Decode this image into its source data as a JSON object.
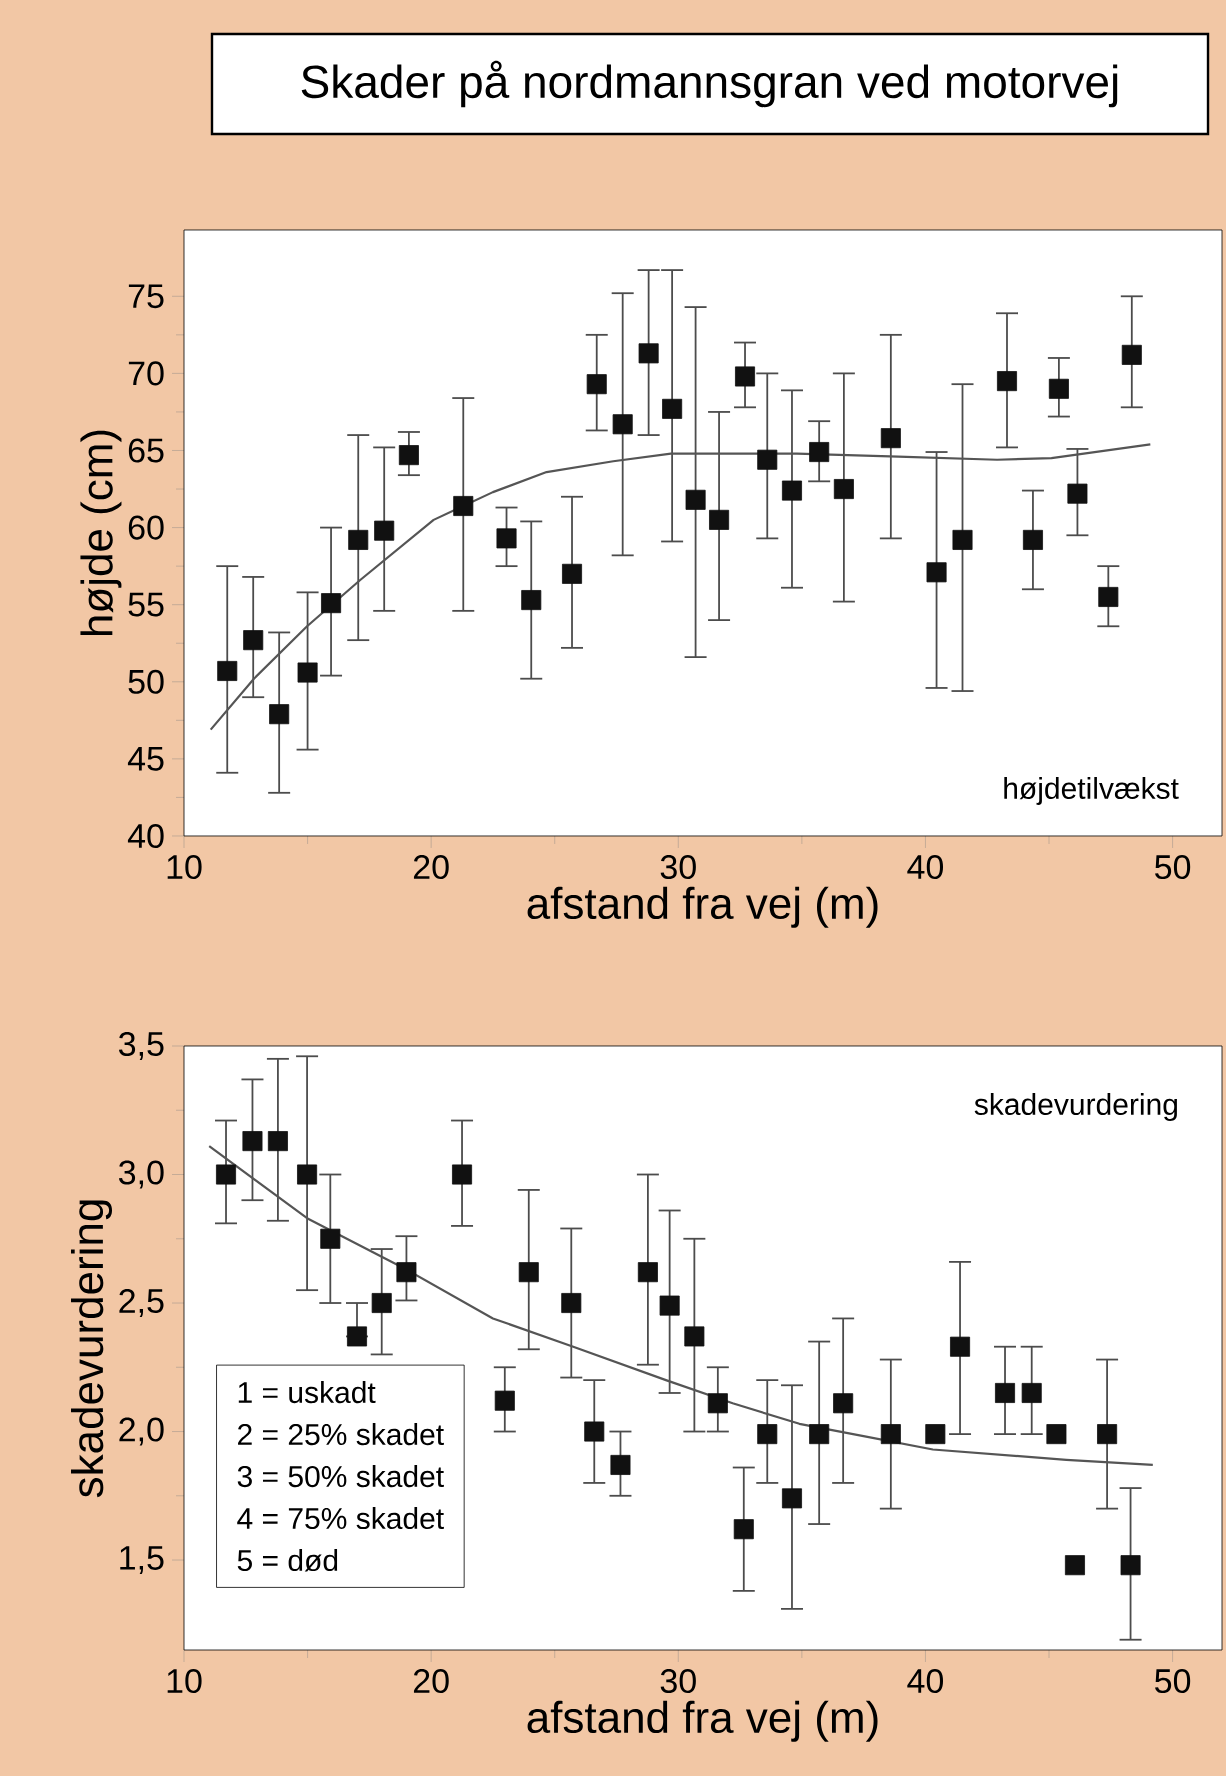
{
  "chart_data": [
    {
      "type": "scatter",
      "title": "Skader på nordmannsgran ved motorvej",
      "xlabel": "afstand fra vej (m)",
      "ylabel": "højde (cm)",
      "xlim": [
        10,
        52
      ],
      "ylim": [
        40,
        79.3
      ],
      "xticks": [
        10,
        20,
        30,
        40,
        50
      ],
      "yticks": [
        40,
        45,
        50,
        55,
        60,
        65,
        70,
        75
      ],
      "annotations": [
        "højdetilvækst"
      ],
      "series": [
        {
          "marker": "square",
          "color": "#111111",
          "x": [
            11.75,
            12.8,
            13.85,
            15.0,
            15.95,
            17.05,
            18.1,
            19.1,
            21.3,
            23.05,
            24.05,
            25.7,
            26.7,
            27.75,
            28.8,
            29.75,
            30.7,
            31.65,
            32.7,
            33.6,
            34.6,
            35.7,
            36.7,
            38.6,
            40.45,
            41.5,
            43.3,
            44.35,
            45.4,
            46.15,
            47.4,
            48.35
          ],
          "values": [
            50.7,
            52.7,
            47.9,
            50.6,
            55.1,
            59.2,
            59.8,
            64.7,
            61.4,
            59.3,
            55.3,
            57.0,
            69.3,
            66.7,
            71.3,
            67.7,
            61.8,
            60.5,
            69.8,
            64.4,
            62.4,
            64.9,
            62.5,
            65.8,
            57.1,
            59.2,
            69.5,
            59.2,
            69.0,
            62.2,
            55.5,
            71.2
          ],
          "errors": [
            [
              44.1,
              57.5
            ],
            [
              49.0,
              56.8
            ],
            [
              42.8,
              53.2
            ],
            [
              45.6,
              55.8
            ],
            [
              50.4,
              60.0
            ],
            [
              52.7,
              66.0
            ],
            [
              54.6,
              65.2
            ],
            [
              63.4,
              66.2
            ],
            [
              54.6,
              68.4
            ],
            [
              57.5,
              61.3
            ],
            [
              50.2,
              60.4
            ],
            [
              52.2,
              62.0
            ],
            [
              66.3,
              72.5
            ],
            [
              58.2,
              75.2
            ],
            [
              66.0,
              76.7
            ],
            [
              59.1,
              76.7
            ],
            [
              51.6,
              74.3
            ],
            [
              54.0,
              67.5
            ],
            [
              67.8,
              72.0
            ],
            [
              59.3,
              70.0
            ],
            [
              56.1,
              68.9
            ],
            [
              63.0,
              66.9
            ],
            [
              55.2,
              70.0
            ],
            [
              59.3,
              72.5
            ],
            [
              49.6,
              64.9
            ],
            [
              49.4,
              69.3
            ],
            [
              65.2,
              73.9
            ],
            [
              56.0,
              62.4
            ],
            [
              67.2,
              71.0
            ],
            [
              59.5,
              65.1
            ],
            [
              53.6,
              57.5
            ],
            [
              67.8,
              75.0
            ]
          ]
        },
        {
          "type": "line",
          "line_style": "solid",
          "color": "#555555",
          "x": [
            11.08,
            12.83,
            14.98,
            17.13,
            20.1,
            22.5,
            24.67,
            27.37,
            29.7,
            34.8,
            38.9,
            42.9,
            45.1,
            49.1
          ],
          "values": [
            46.9,
            50.2,
            53.6,
            56.6,
            60.5,
            62.3,
            63.6,
            64.3,
            64.8,
            64.8,
            64.6,
            64.4,
            64.5,
            65.4
          ]
        }
      ]
    },
    {
      "type": "scatter",
      "xlabel": "afstand fra vej (m)",
      "ylabel": "skadevurdering",
      "xlim": [
        10,
        52
      ],
      "ylim": [
        1.15,
        3.5
      ],
      "xticks": [
        10,
        20,
        30,
        40,
        50
      ],
      "yticks": [
        {
          "value": 1.5,
          "label": "1,5"
        },
        {
          "value": 2.0,
          "label": "2,0"
        },
        {
          "value": 2.5,
          "label": "2,5"
        },
        {
          "value": 3.0,
          "label": "3,0"
        },
        {
          "value": 3.5,
          "label": "3,5"
        }
      ],
      "annotations": [
        "skadevurdering",
        "1 = uskadt",
        "2 = 25% skadet",
        "3 = 50% skadet",
        "4 = 75% skadet",
        "5 = død"
      ],
      "series": [
        {
          "marker": "square",
          "color": "#111111",
          "x": [
            11.7,
            12.77,
            13.8,
            14.98,
            15.92,
            17.0,
            18.0,
            19.0,
            21.25,
            22.98,
            23.95,
            25.67,
            26.6,
            27.66,
            28.77,
            29.65,
            30.65,
            31.6,
            32.65,
            33.6,
            34.6,
            35.7,
            36.67,
            38.6,
            40.4,
            41.4,
            43.22,
            44.3,
            45.3,
            46.05,
            47.35,
            48.3
          ],
          "values": [
            3.0,
            3.13,
            3.13,
            3.0,
            2.75,
            2.37,
            2.5,
            2.62,
            3.0,
            2.12,
            2.62,
            2.5,
            2.0,
            1.87,
            2.62,
            2.49,
            2.37,
            2.11,
            1.62,
            1.99,
            1.74,
            1.99,
            2.11,
            1.99,
            1.99,
            2.33,
            2.15,
            2.15,
            1.99,
            1.48,
            1.99,
            1.48
          ],
          "errors": [
            [
              2.81,
              3.21
            ],
            [
              2.9,
              3.37
            ],
            [
              2.82,
              3.45
            ],
            [
              2.55,
              3.46
            ],
            [
              2.5,
              3.0
            ],
            [
              2.37,
              2.5
            ],
            [
              2.3,
              2.71
            ],
            [
              2.51,
              2.76
            ],
            [
              2.8,
              3.21
            ],
            [
              2.0,
              2.25
            ],
            [
              2.32,
              2.94
            ],
            [
              2.21,
              2.79
            ],
            [
              1.8,
              2.2
            ],
            [
              1.75,
              2.0
            ],
            [
              2.26,
              3.0
            ],
            [
              2.15,
              2.86
            ],
            [
              2.0,
              2.75
            ],
            [
              2.0,
              2.25
            ],
            [
              1.38,
              1.86
            ],
            [
              1.8,
              2.2
            ],
            [
              1.31,
              2.18
            ],
            [
              1.64,
              2.35
            ],
            [
              1.8,
              2.44
            ],
            [
              1.7,
              2.28
            ],
            null,
            [
              1.99,
              2.66
            ],
            [
              1.99,
              2.33
            ],
            [
              1.99,
              2.33
            ],
            null,
            null,
            [
              1.7,
              2.28
            ],
            [
              1.19,
              1.78
            ]
          ]
        },
        {
          "type": "line",
          "line_style": "solid",
          "color": "#555555",
          "x": [
            11.02,
            14.98,
            19.0,
            22.5,
            25.75,
            29.5,
            32.2,
            34.9,
            37.6,
            40.3,
            43.0,
            45.7,
            49.2
          ],
          "values": [
            3.11,
            2.83,
            2.63,
            2.44,
            2.33,
            2.2,
            2.11,
            2.03,
            1.98,
            1.93,
            1.91,
            1.89,
            1.87
          ]
        }
      ]
    }
  ]
}
